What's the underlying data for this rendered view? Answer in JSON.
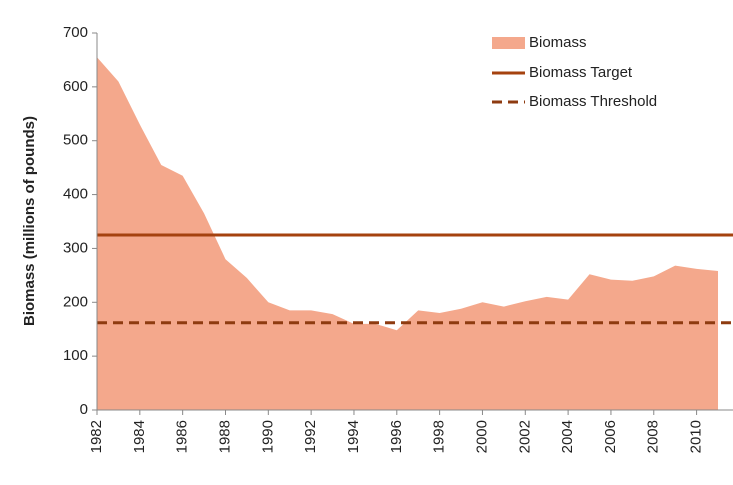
{
  "chart_data": {
    "type": "area",
    "y_label": "Biomass (millions of pounds)",
    "x": [
      1982,
      1983,
      1984,
      1985,
      1986,
      1987,
      1988,
      1989,
      1990,
      1991,
      1992,
      1993,
      1994,
      1995,
      1996,
      1997,
      1998,
      1999,
      2000,
      2001,
      2002,
      2003,
      2004,
      2005,
      2006,
      2007,
      2008,
      2009,
      2010,
      2011
    ],
    "series": [
      {
        "name": "Biomass",
        "color": "#f4a88c",
        "values": [
          655,
          610,
          530,
          455,
          435,
          365,
          280,
          245,
          200,
          185,
          185,
          178,
          160,
          160,
          148,
          185,
          180,
          188,
          200,
          192,
          202,
          210,
          205,
          252,
          242,
          240,
          248,
          268,
          262,
          258
        ]
      }
    ],
    "reference_lines": [
      {
        "name": "Biomass Target",
        "value": 325,
        "color": "#a5420f",
        "style": "solid"
      },
      {
        "name": "Biomass Threshold",
        "value": 162,
        "color": "#8e3b10",
        "style": "dashed"
      }
    ],
    "xlim": [
      1982,
      2011.7
    ],
    "xticks": [
      1982,
      1984,
      1986,
      1988,
      1990,
      1992,
      1994,
      1996,
      1998,
      2000,
      2002,
      2004,
      2006,
      2008,
      2010
    ],
    "ylim": [
      0,
      700
    ],
    "yticks": [
      0,
      100,
      200,
      300,
      400,
      500,
      600,
      700
    ],
    "legend": "top-right"
  }
}
